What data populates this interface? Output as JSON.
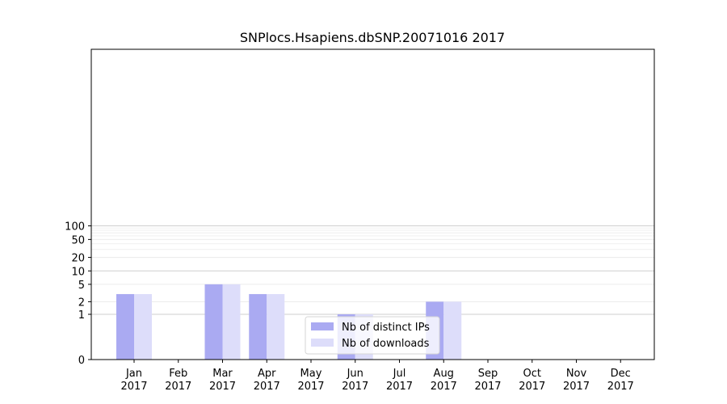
{
  "chart_data": {
    "type": "bar",
    "title": "SNPlocs.Hsapiens.dbSNP.20071016 2017",
    "xlabel": "",
    "ylabel": "",
    "y_scale": "symlog",
    "ylim": [
      0,
      130
    ],
    "y_ticks": [
      0,
      1,
      2,
      5,
      10,
      20,
      50,
      100
    ],
    "grid": true,
    "legend_position": "bottom-center",
    "categories": [
      {
        "month": "Jan",
        "year": "2017"
      },
      {
        "month": "Feb",
        "year": "2017"
      },
      {
        "month": "Mar",
        "year": "2017"
      },
      {
        "month": "Apr",
        "year": "2017"
      },
      {
        "month": "May",
        "year": "2017"
      },
      {
        "month": "Jun",
        "year": "2017"
      },
      {
        "month": "Jul",
        "year": "2017"
      },
      {
        "month": "Aug",
        "year": "2017"
      },
      {
        "month": "Sep",
        "year": "2017"
      },
      {
        "month": "Oct",
        "year": "2017"
      },
      {
        "month": "Nov",
        "year": "2017"
      },
      {
        "month": "Dec",
        "year": "2017"
      }
    ],
    "series": [
      {
        "name": "Nb of distinct IPs",
        "color": "#aaaaf2",
        "values": [
          3,
          0,
          5,
          3,
          0,
          1,
          0,
          2,
          0,
          0,
          0,
          0
        ]
      },
      {
        "name": "Nb of downloads",
        "color": "#ddddfa",
        "values": [
          3,
          0,
          5,
          3,
          0,
          1,
          0,
          2,
          0,
          0,
          0,
          0
        ]
      }
    ]
  }
}
